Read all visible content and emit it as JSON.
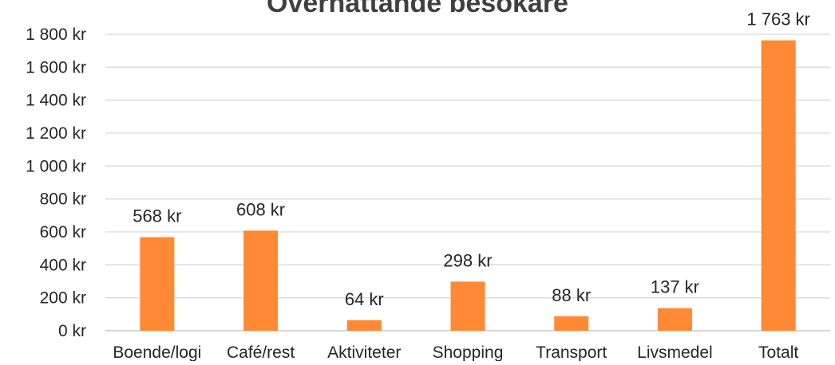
{
  "chart_data": {
    "type": "bar",
    "title": "Övernattande besökare",
    "categories": [
      "Boende/logi",
      "Café/rest",
      "Aktiviteter",
      "Shopping",
      "Transport",
      "Livsmedel",
      "Totalt"
    ],
    "values": [
      568,
      608,
      64,
      298,
      88,
      137,
      1763
    ],
    "data_labels": [
      "568 kr",
      "608 kr",
      "64 kr",
      "298 kr",
      "88 kr",
      "137 kr",
      "1 763 kr"
    ],
    "y_ticks": [
      0,
      200,
      400,
      600,
      800,
      1000,
      1200,
      1400,
      1600,
      1800
    ],
    "y_tick_labels": [
      "0 kr",
      "200 kr",
      "400 kr",
      "600 kr",
      "800 kr",
      "1 000 kr",
      "1 200 kr",
      "1 400 kr",
      "1 600 kr",
      "1 800 kr"
    ],
    "ylim": [
      0,
      1800
    ],
    "grid": true,
    "legend": "none",
    "colors": {
      "bar": "#FF8935",
      "grid": "#D9D9D9",
      "axis": "#BFBFBF",
      "text": "#262626"
    }
  }
}
